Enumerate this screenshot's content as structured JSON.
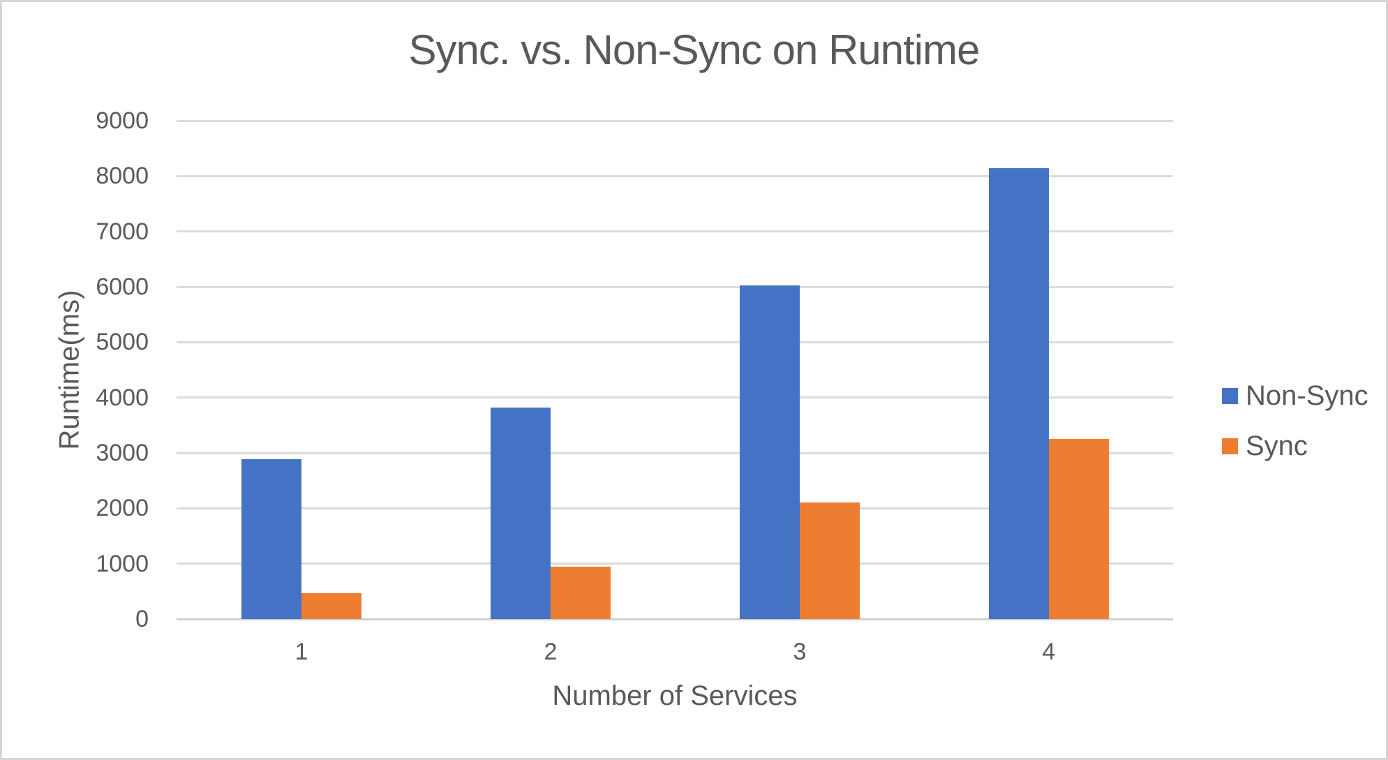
{
  "chart_data": {
    "type": "bar",
    "title": "Sync. vs. Non-Sync on Runtime",
    "categories": [
      "1",
      "2",
      "3",
      "4"
    ],
    "series": [
      {
        "name": "Non-Sync",
        "color": "#4472C4",
        "values": [
          2890,
          3820,
          6020,
          8140
        ]
      },
      {
        "name": "Sync",
        "color": "#ED7D31",
        "values": [
          470,
          940,
          2100,
          3250
        ]
      }
    ],
    "xlabel": "Number of Services",
    "ylabel": "Runtime(ms)",
    "ylim": [
      0,
      9000
    ],
    "yticks": [
      0,
      1000,
      2000,
      3000,
      4000,
      5000,
      6000,
      7000,
      8000,
      9000
    ],
    "grid": true,
    "legend_position": "right"
  },
  "colors": {
    "background": "#FFFFFF",
    "border": "#D6D6D6",
    "gridline": "#DBDBDB",
    "axis_line": "#D0D0D0",
    "text": "#595959",
    "non_sync_bar": "#4472C4",
    "sync_bar": "#ED7D31"
  }
}
